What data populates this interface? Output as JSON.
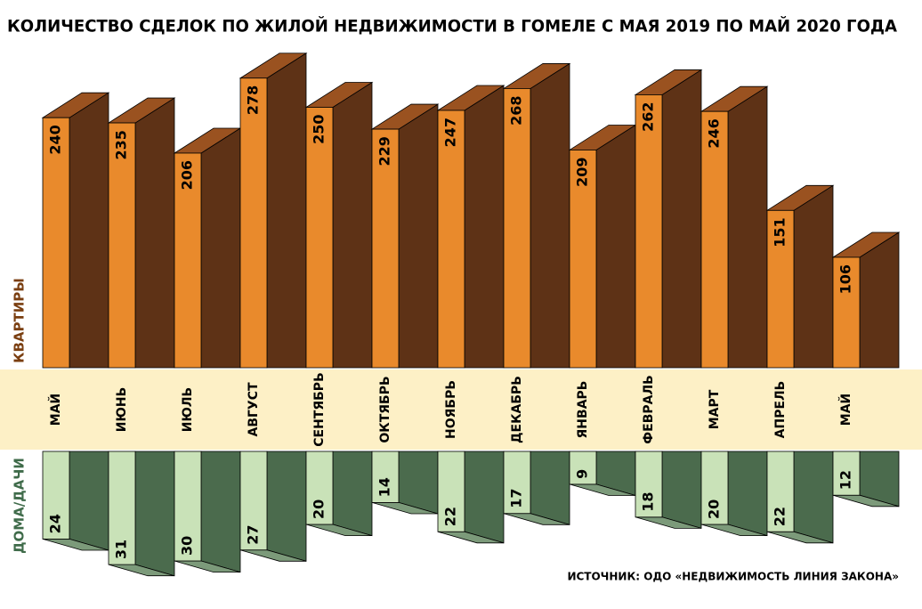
{
  "chart_data": {
    "type": "bar3d-updown",
    "title": "КОЛИЧЕСТВО СДЕЛОК ПО ЖИЛОЙ НЕДВИЖИМОСТИ В ГОМЕЛЕ С МАЯ 2019 ПО МАЙ 2020 ГОДА",
    "categories": [
      "МАЙ",
      "ИЮНЬ",
      "ИЮЛЬ",
      "АВГУСТ",
      "СЕНТЯБРЬ",
      "ОКТЯБРЬ",
      "НОЯБРЬ",
      "ДЕКАБРЬ",
      "ЯНВАРЬ",
      "ФЕВРАЛЬ",
      "МАРТ",
      "АПРЕЛЬ",
      "МАЙ"
    ],
    "series": [
      {
        "name": "КВАРТИРЫ",
        "color": "#e98a2c",
        "values": [
          240,
          235,
          206,
          278,
          250,
          229,
          247,
          268,
          209,
          262,
          246,
          151,
          106
        ]
      },
      {
        "name": "ДОМА/ДАЧИ",
        "color": "#c9e2b8",
        "values": [
          24,
          31,
          30,
          27,
          20,
          14,
          22,
          17,
          9,
          18,
          20,
          22,
          12
        ]
      }
    ],
    "source": "ИСТОЧНИК: ОДО «НЕДВИЖИМОСТЬ ЛИНИЯ ЗАКОНА»"
  }
}
